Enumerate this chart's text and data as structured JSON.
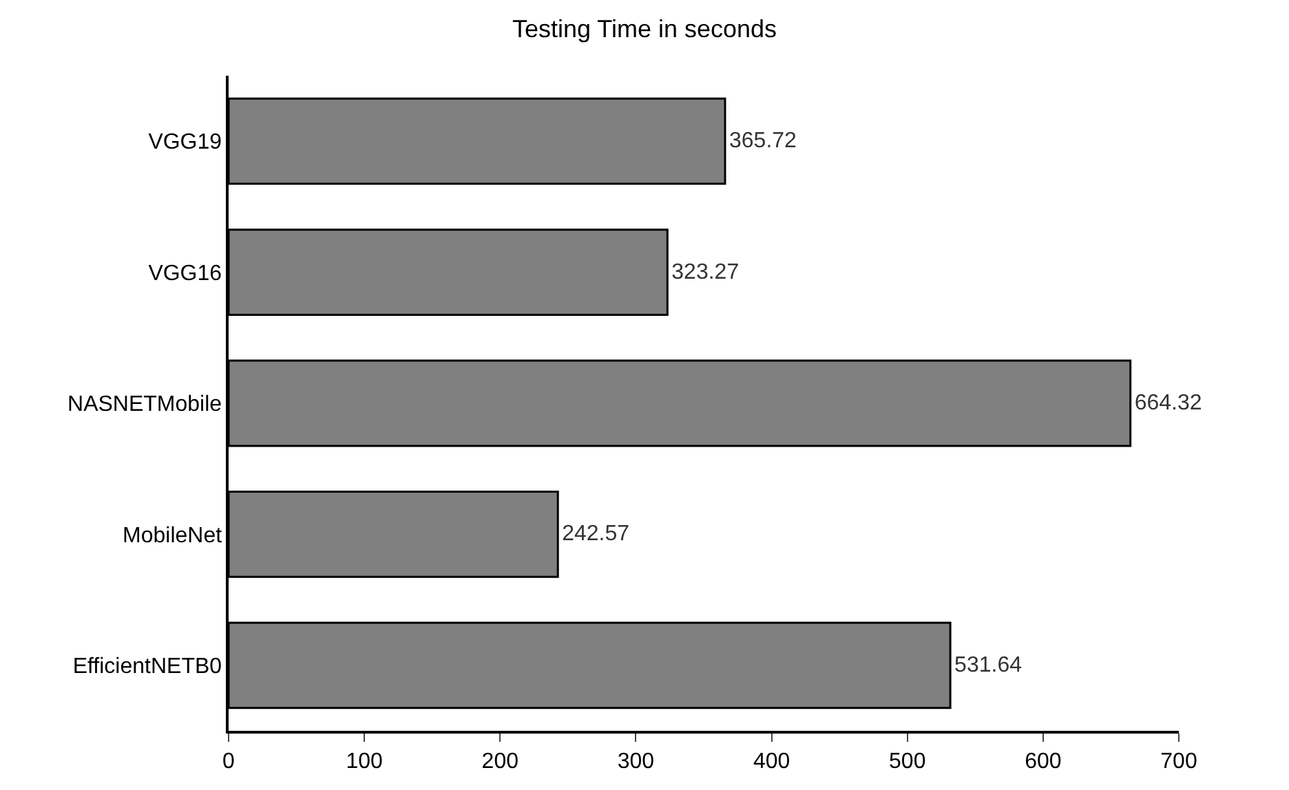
{
  "chart_data": {
    "type": "bar",
    "orientation": "horizontal",
    "title": "Testing Time in seconds",
    "categories": [
      "VGG19",
      "VGG16",
      "NASNETMobile",
      "MobileNet",
      "EfficientNETB0"
    ],
    "values": [
      365.72,
      323.27,
      664.32,
      242.57,
      531.64
    ],
    "color": "#808080",
    "xlim": [
      0,
      700
    ],
    "xticks": [
      0,
      100,
      200,
      300,
      400,
      500,
      600,
      700
    ],
    "data_labels": true
  }
}
